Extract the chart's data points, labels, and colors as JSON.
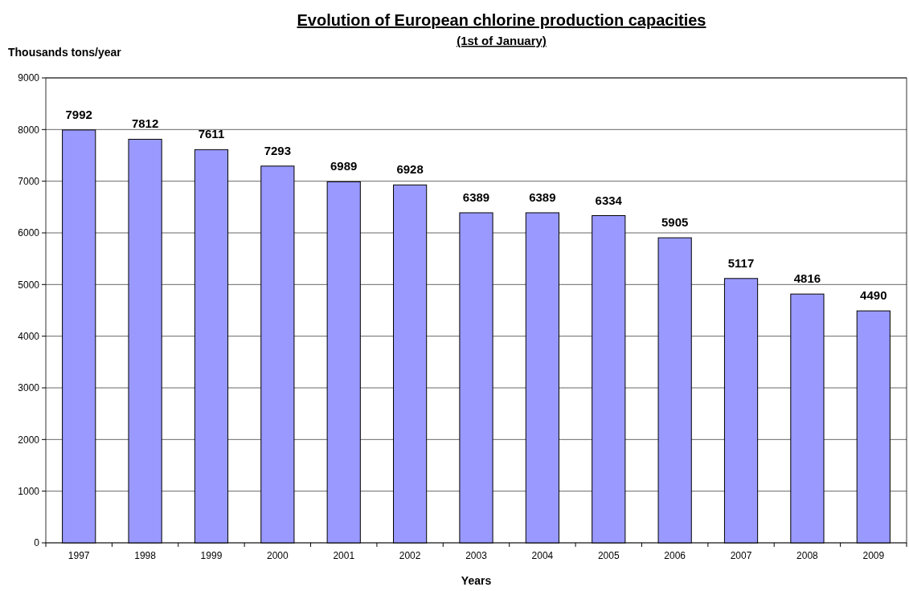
{
  "chart_data": {
    "type": "bar",
    "title": "Evolution of European chlorine production capacities",
    "subtitle": "(1st of January)",
    "xlabel": "Years",
    "ylabel": "Thousands tons/year",
    "categories": [
      "1997",
      "1998",
      "1999",
      "2000",
      "2001",
      "2002",
      "2003",
      "2004",
      "2005",
      "2006",
      "2007",
      "2008",
      "2009"
    ],
    "values": [
      7992,
      7812,
      7611,
      7293,
      6989,
      6928,
      6389,
      6389,
      6334,
      5905,
      5117,
      4816,
      4490
    ],
    "color": "#9999ff",
    "ylim": [
      0,
      9000
    ],
    "yticks": [
      0,
      1000,
      2000,
      3000,
      4000,
      5000,
      6000,
      7000,
      8000,
      9000
    ],
    "grid": "y",
    "data_labels": true
  }
}
